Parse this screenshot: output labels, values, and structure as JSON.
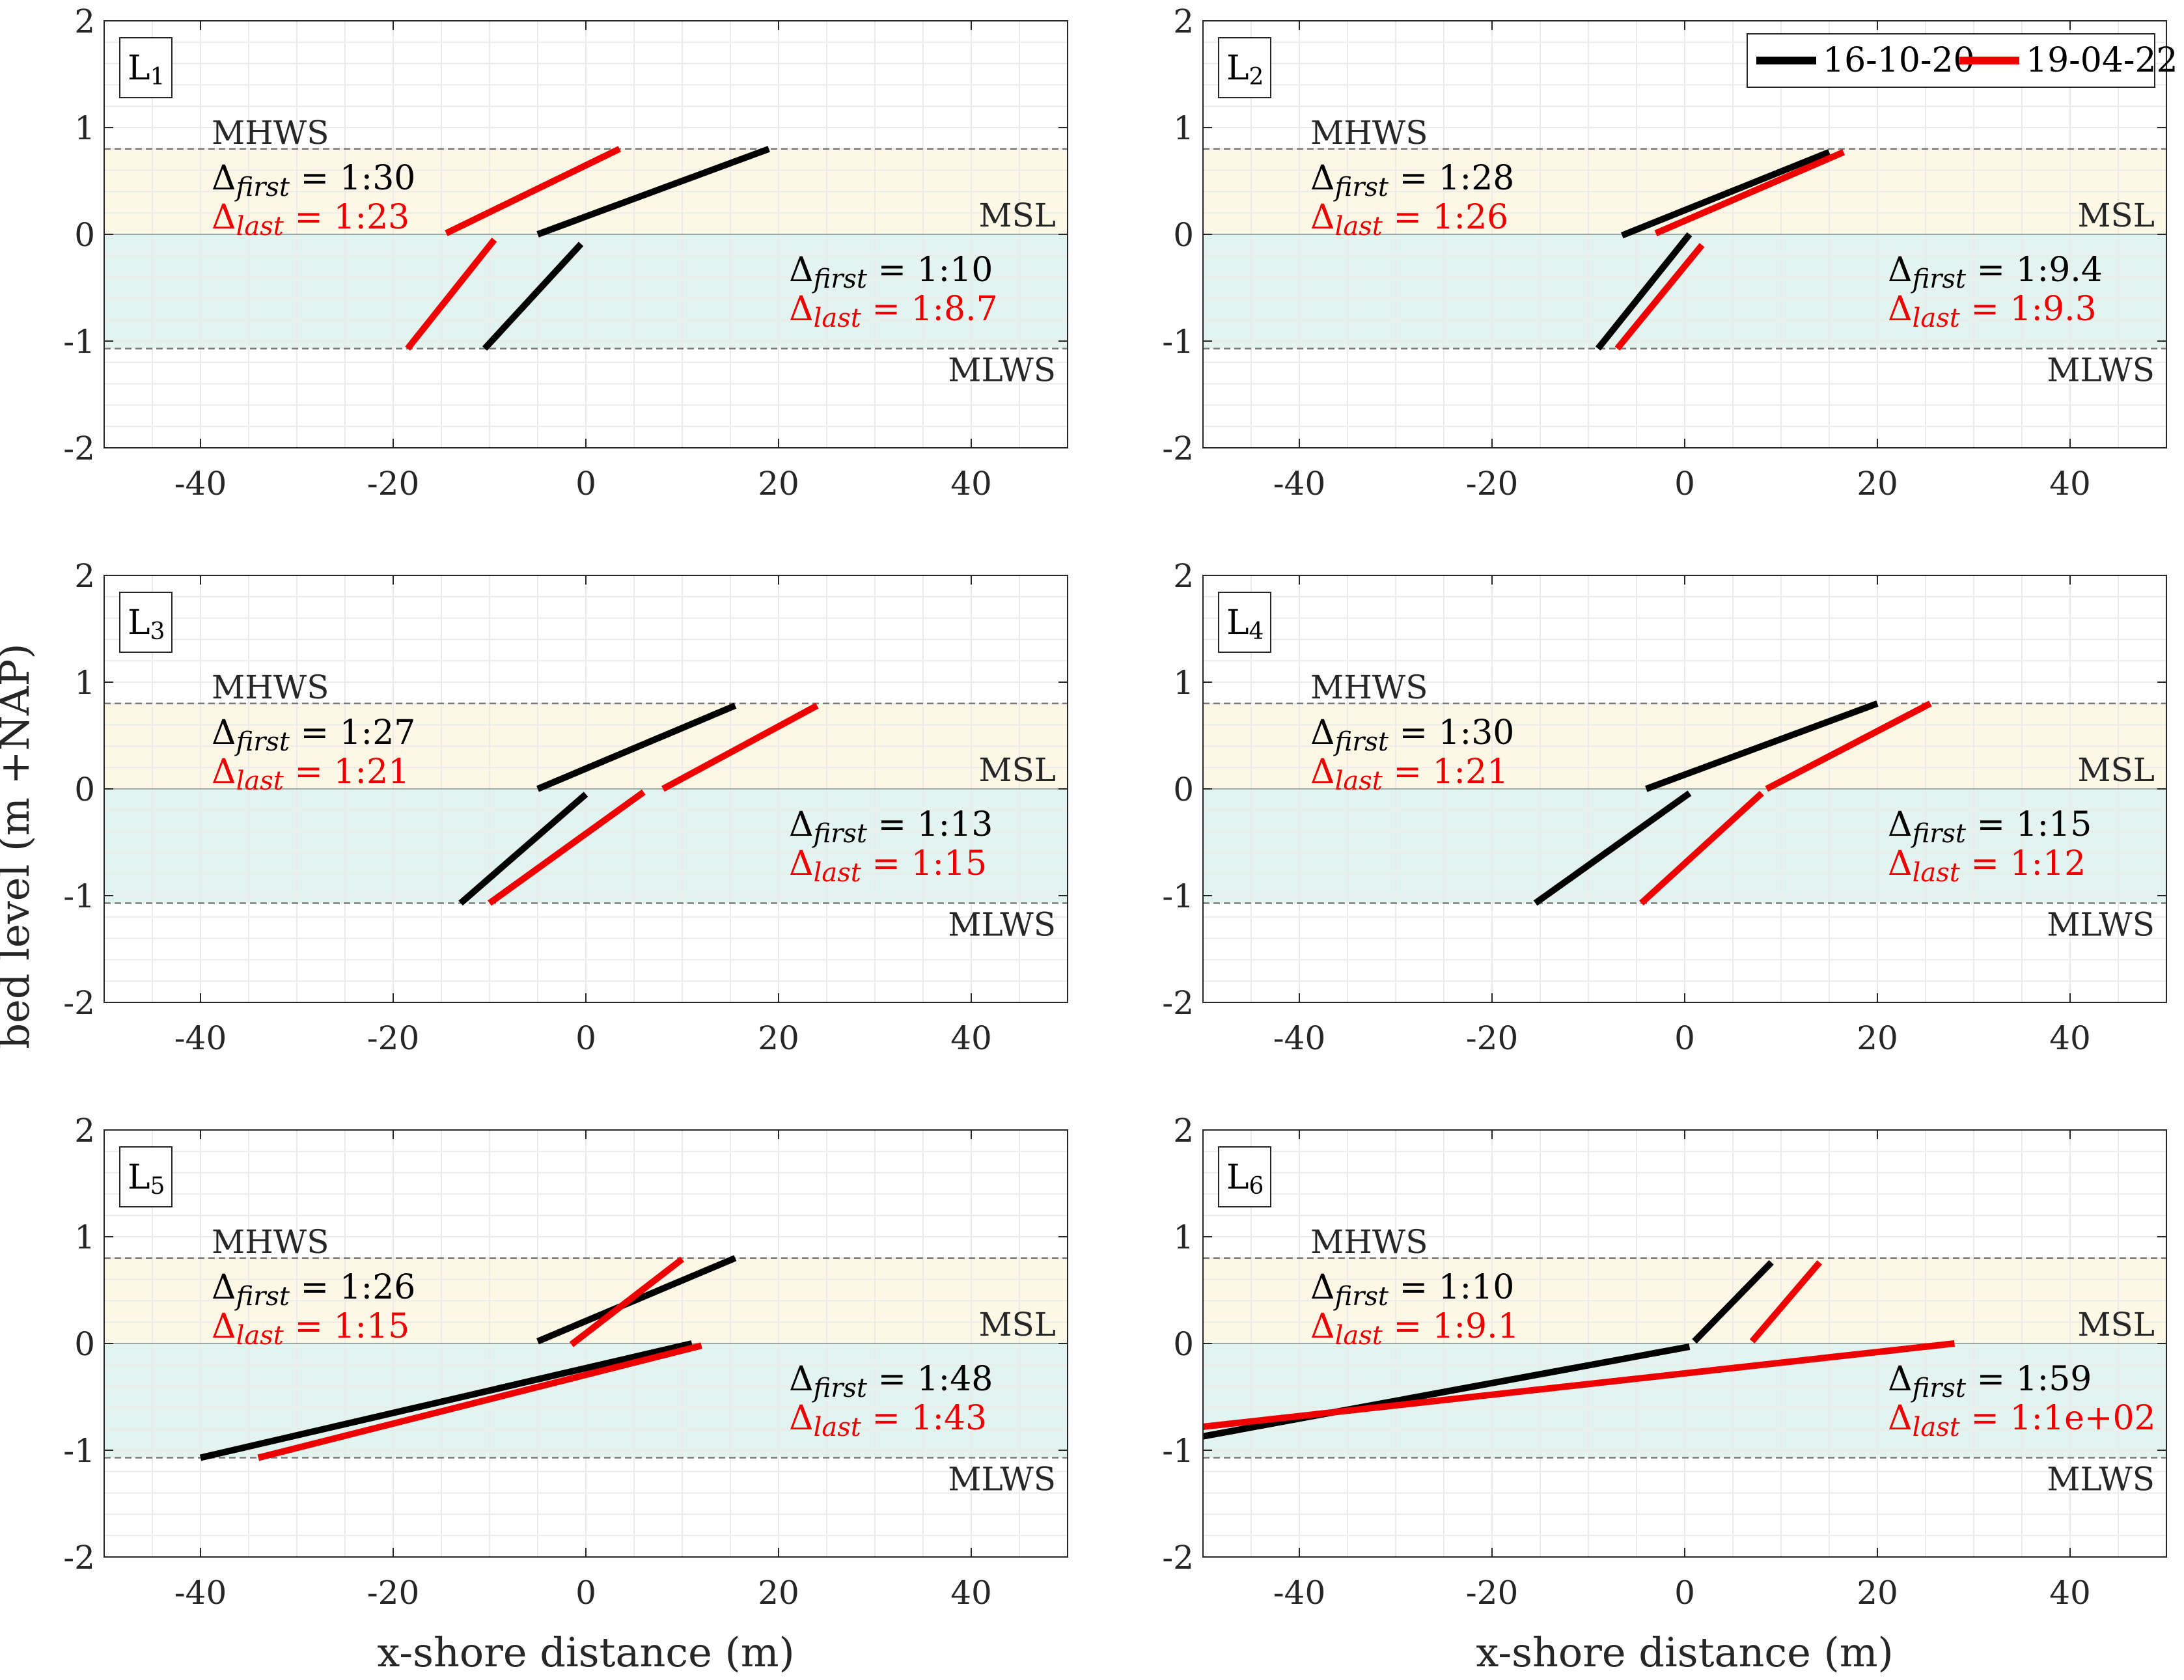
{
  "figure": {
    "ylabel": "bed level (m +NAP)",
    "xlabel": "x-shore distance (m)",
    "legend": [
      {
        "label": "16-10-20",
        "color": "#000000"
      },
      {
        "label": "19-04-22",
        "color": "#ee0000"
      }
    ],
    "level_labels": {
      "mhws": "MHWS",
      "msl": "MSL",
      "mlws": "MLWS"
    },
    "annotation_prefix": {
      "first": "first",
      "last": "last",
      "sep": "= 1:"
    },
    "colors": {
      "band_upper": "#fdf8e6",
      "band_lower": "#e3f3ef",
      "first": "#000000",
      "last": "#ee0000"
    }
  },
  "chart_data": [
    {
      "type": "line",
      "panel": "L1",
      "panel_sub": "1",
      "xlim": [
        -50,
        50
      ],
      "ylim": [
        -2,
        2
      ],
      "xticks": [
        -40,
        -20,
        0,
        20,
        40
      ],
      "yticks": [
        2,
        1,
        0,
        -1,
        -2
      ],
      "levels": {
        "mhws": 0.8,
        "msl": 0,
        "mlws": -1.07
      },
      "series": [
        {
          "name": "16-10-20",
          "segments": [
            [
              [
                -5,
                0
              ],
              [
                19,
                0.8
              ]
            ],
            [
              [
                -10.5,
                -1.07
              ],
              [
                -0.5,
                -0.09
              ]
            ]
          ]
        },
        {
          "name": "19-04-22",
          "segments": [
            [
              [
                -14.5,
                0.01
              ],
              [
                3.5,
                0.8
              ]
            ],
            [
              [
                -18.5,
                -1.07
              ],
              [
                -9.5,
                -0.05
              ]
            ]
          ]
        }
      ],
      "annotations": {
        "upper": {
          "first": "30",
          "last": "23"
        },
        "lower": {
          "first": "10",
          "last": "8.7"
        }
      }
    },
    {
      "type": "line",
      "panel": "L2",
      "panel_sub": "2",
      "xlim": [
        -50,
        50
      ],
      "ylim": [
        -2,
        2
      ],
      "xticks": [
        -40,
        -20,
        0,
        20,
        40
      ],
      "yticks": [
        2,
        1,
        0,
        -1,
        -2
      ],
      "levels": {
        "mhws": 0.8,
        "msl": 0,
        "mlws": -1.07
      },
      "series": [
        {
          "name": "16-10-20",
          "segments": [
            [
              [
                -6.5,
                -0.01
              ],
              [
                15,
                0.77
              ]
            ],
            [
              [
                -9,
                -1.07
              ],
              [
                0.5,
                0
              ]
            ]
          ]
        },
        {
          "name": "19-04-22",
          "segments": [
            [
              [
                -3,
                0.01
              ],
              [
                16.5,
                0.77
              ]
            ],
            [
              [
                -7,
                -1.07
              ],
              [
                1.8,
                -0.1
              ]
            ]
          ]
        }
      ],
      "annotations": {
        "upper": {
          "first": "28",
          "last": "26"
        },
        "lower": {
          "first": "9.4",
          "last": "9.3"
        }
      }
    },
    {
      "type": "line",
      "panel": "L3",
      "panel_sub": "3",
      "xlim": [
        -50,
        50
      ],
      "ylim": [
        -2,
        2
      ],
      "xticks": [
        -40,
        -20,
        0,
        20,
        40
      ],
      "yticks": [
        2,
        1,
        0,
        -1,
        -2
      ],
      "levels": {
        "mhws": 0.8,
        "msl": 0,
        "mlws": -1.07
      },
      "series": [
        {
          "name": "16-10-20",
          "segments": [
            [
              [
                -5,
                0
              ],
              [
                15.5,
                0.78
              ]
            ],
            [
              [
                -13,
                -1.07
              ],
              [
                0,
                -0.05
              ]
            ]
          ]
        },
        {
          "name": "19-04-22",
          "segments": [
            [
              [
                8,
                0
              ],
              [
                24,
                0.78
              ]
            ],
            [
              [
                -10,
                -1.07
              ],
              [
                6,
                -0.03
              ]
            ]
          ]
        }
      ],
      "annotations": {
        "upper": {
          "first": "27",
          "last": "21"
        },
        "lower": {
          "first": "13",
          "last": "15"
        }
      }
    },
    {
      "type": "line",
      "panel": "L4",
      "panel_sub": "4",
      "xlim": [
        -50,
        50
      ],
      "ylim": [
        -2,
        2
      ],
      "xticks": [
        -40,
        -20,
        0,
        20,
        40
      ],
      "yticks": [
        2,
        1,
        0,
        -1,
        -2
      ],
      "levels": {
        "mhws": 0.8,
        "msl": 0,
        "mlws": -1.07
      },
      "series": [
        {
          "name": "16-10-20",
          "segments": [
            [
              [
                -4,
                0
              ],
              [
                20,
                0.8
              ]
            ],
            [
              [
                -15.5,
                -1.07
              ],
              [
                0.5,
                -0.04
              ]
            ]
          ]
        },
        {
          "name": "19-04-22",
          "segments": [
            [
              [
                8.5,
                0
              ],
              [
                25.5,
                0.8
              ]
            ],
            [
              [
                -4.5,
                -1.07
              ],
              [
                8,
                -0.04
              ]
            ]
          ]
        }
      ],
      "annotations": {
        "upper": {
          "first": "30",
          "last": "21"
        },
        "lower": {
          "first": "15",
          "last": "12"
        }
      }
    },
    {
      "type": "line",
      "panel": "L5",
      "panel_sub": "5",
      "xlim": [
        -50,
        50
      ],
      "ylim": [
        -2,
        2
      ],
      "xticks": [
        -40,
        -20,
        0,
        20,
        40
      ],
      "yticks": [
        2,
        1,
        0,
        -1,
        -2
      ],
      "levels": {
        "mhws": 0.8,
        "msl": 0,
        "mlws": -1.07
      },
      "series": [
        {
          "name": "16-10-20",
          "segments": [
            [
              [
                -5,
                0.02
              ],
              [
                15.5,
                0.8
              ]
            ],
            [
              [
                -40,
                -1.07
              ],
              [
                11,
                0
              ]
            ]
          ]
        },
        {
          "name": "19-04-22",
          "segments": [
            [
              [
                -1.5,
                -0.01
              ],
              [
                10,
                0.79
              ]
            ],
            [
              [
                -34,
                -1.07
              ],
              [
                12,
                -0.02
              ]
            ]
          ]
        }
      ],
      "annotations": {
        "upper": {
          "first": "26",
          "last": "15"
        },
        "lower": {
          "first": "48",
          "last": "43"
        }
      }
    },
    {
      "type": "line",
      "panel": "L6",
      "panel_sub": "6",
      "xlim": [
        -50,
        50
      ],
      "ylim": [
        -2,
        2
      ],
      "xticks": [
        -40,
        -20,
        0,
        20,
        40
      ],
      "yticks": [
        2,
        1,
        0,
        -1,
        -2
      ],
      "levels": {
        "mhws": 0.8,
        "msl": 0,
        "mlws": -1.07
      },
      "series": [
        {
          "name": "16-10-20",
          "segments": [
            [
              [
                1,
                0.02
              ],
              [
                9,
                0.76
              ]
            ],
            [
              [
                -50,
                -0.87
              ],
              [
                0.5,
                -0.03
              ]
            ]
          ]
        },
        {
          "name": "19-04-22",
          "segments": [
            [
              [
                7,
                0.02
              ],
              [
                14,
                0.76
              ]
            ],
            [
              [
                -50,
                -0.78
              ],
              [
                28,
                0
              ]
            ]
          ]
        }
      ],
      "annotations": {
        "upper": {
          "first": "10",
          "last": "9.1"
        },
        "lower": {
          "first": "59",
          "last": "1e+02"
        }
      }
    }
  ]
}
